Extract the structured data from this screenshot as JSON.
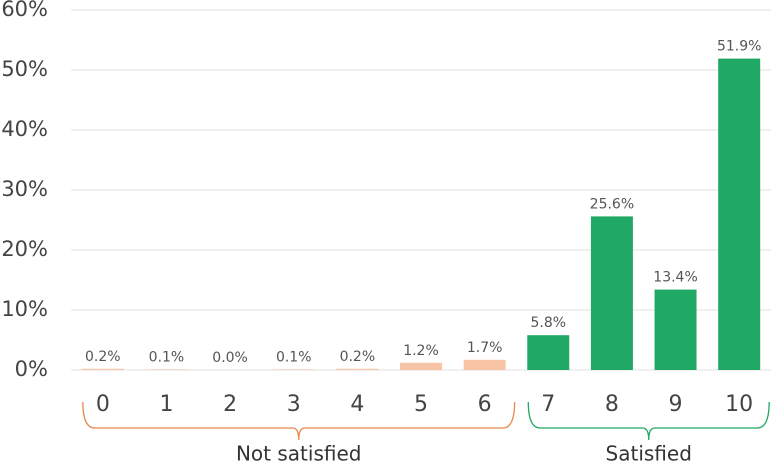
{
  "chart_data": {
    "type": "bar",
    "categories": [
      "0",
      "1",
      "2",
      "3",
      "4",
      "5",
      "6",
      "7",
      "8",
      "9",
      "10"
    ],
    "values": [
      0.2,
      0.1,
      0.0,
      0.1,
      0.2,
      1.2,
      1.7,
      5.8,
      25.6,
      13.4,
      51.9
    ],
    "value_labels": [
      "0.2%",
      "0.1%",
      "0.0%",
      "0.1%",
      "0.2%",
      "1.2%",
      "1.7%",
      "5.8%",
      "25.6%",
      "13.4%",
      "51.9%"
    ],
    "colors": [
      "#f7c4a5",
      "#f7c4a5",
      "#f7c4a5",
      "#f7c4a5",
      "#f7c4a5",
      "#f7c4a5",
      "#f7c4a5",
      "#20a865",
      "#20a865",
      "#20a865",
      "#20a865"
    ],
    "ylim": [
      0,
      60
    ],
    "yticks": [
      {
        "value": 0,
        "label": "0%"
      },
      {
        "value": 10,
        "label": "10%"
      },
      {
        "value": 20,
        "label": "20%"
      },
      {
        "value": 30,
        "label": "30%"
      },
      {
        "value": 40,
        "label": "40%"
      },
      {
        "value": 50,
        "label": "50%"
      },
      {
        "value": 60,
        "label": "60%"
      }
    ],
    "grid": true,
    "groups": [
      {
        "label": "Not satisfied",
        "color": "#e8874a"
      },
      {
        "label": "Satisfied",
        "color": "#20a865"
      }
    ]
  }
}
